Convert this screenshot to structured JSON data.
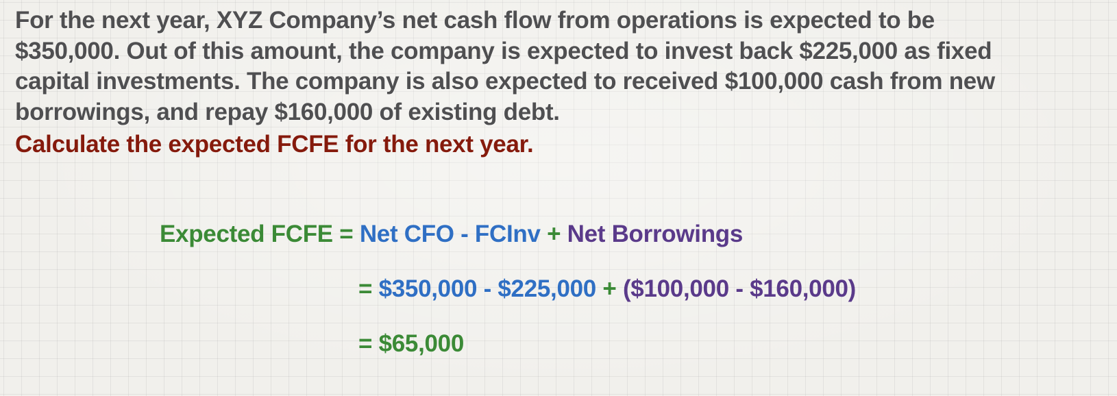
{
  "problem_lines": [
    "For the next year, XYZ Company’s net cash flow from operations is expected to be",
    "$350,000.  Out of this amount, the company is expected to invest back $225,000 as fixed",
    "capital investments. The company is also expected to received $100,000 cash from new",
    "borrowings, and repay $160,000 of existing debt."
  ],
  "question": "Calculate the expected FCFE for the next year.",
  "formula": {
    "lhs": "Expected FCFE",
    "eq": " = ",
    "term1": "Net CFO - FCInv",
    "plus": " + ",
    "term2": "Net Borrowings"
  },
  "substitution": {
    "eq": "= ",
    "term1": "$350,000 - $225,000",
    "plus": " + ",
    "term2": "($100,000 - $160,000)"
  },
  "result": {
    "eq": "= ",
    "value": "$65,000"
  },
  "colors": {
    "text": "#4f4f51",
    "question": "#851a0c",
    "green": "#3b8a36",
    "blue": "#2f6fc4",
    "purple": "#5a3a8a"
  }
}
